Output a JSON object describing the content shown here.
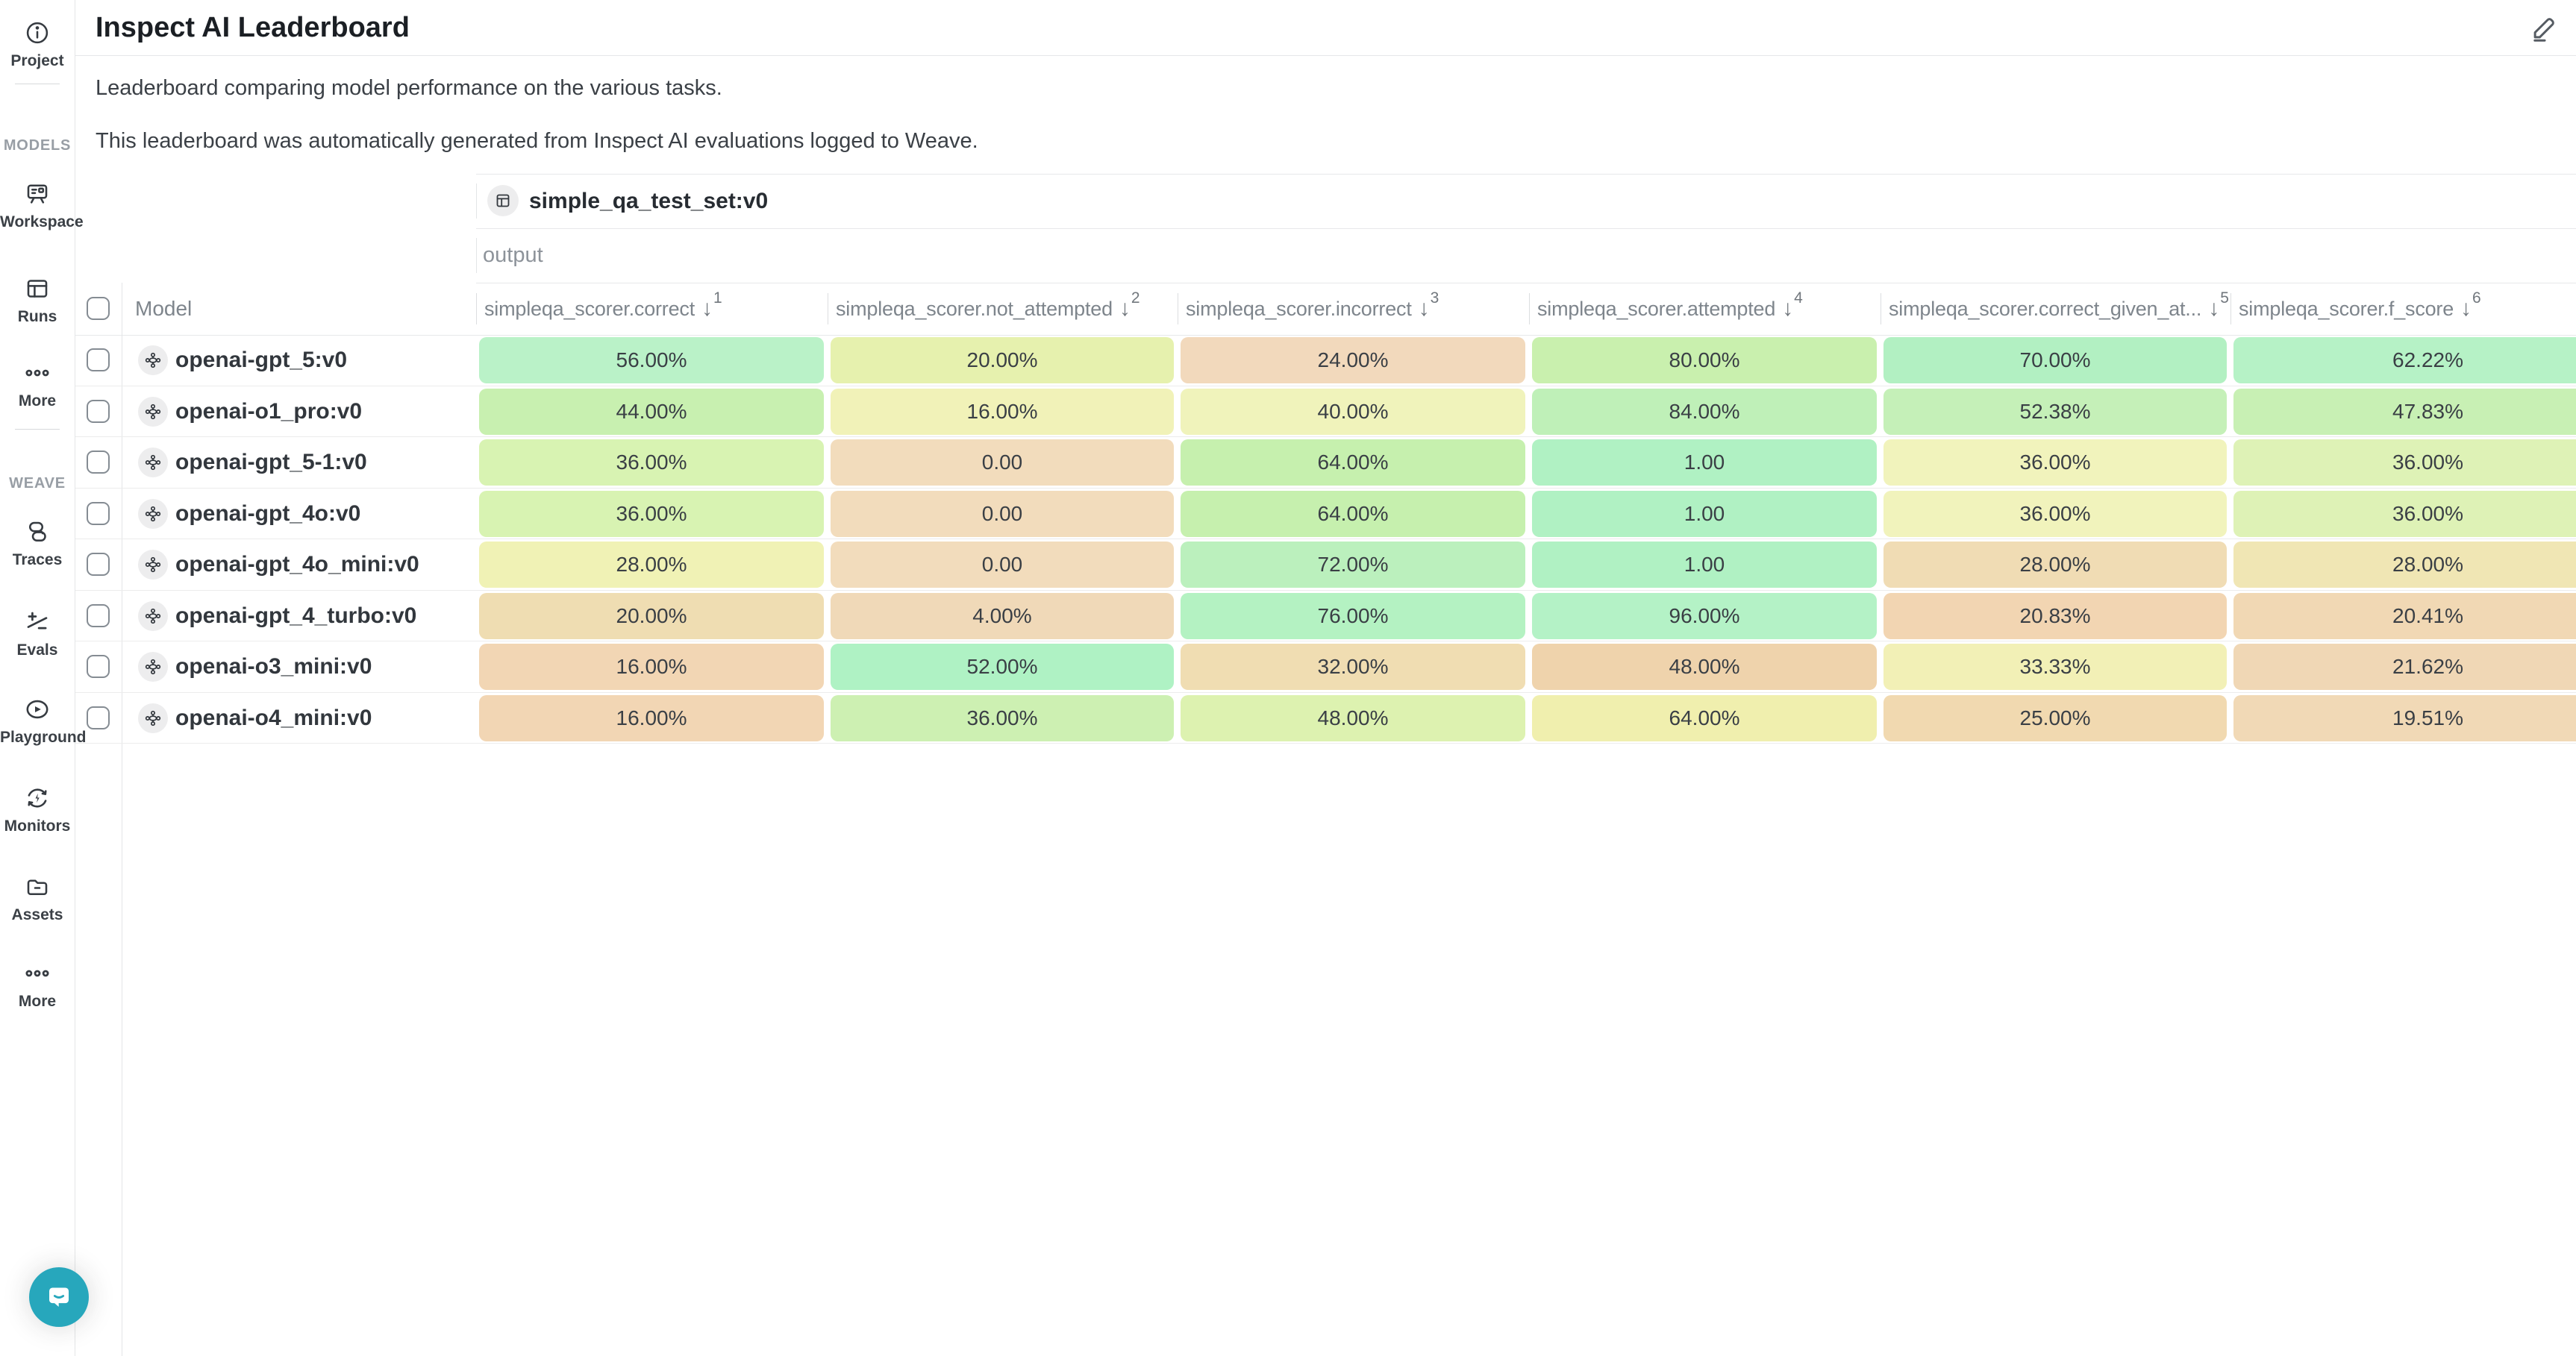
{
  "header": {
    "title": "Inspect AI Leaderboard"
  },
  "intro": {
    "line1": "Leaderboard comparing model performance on the various tasks.",
    "line2": "This leaderboard was automatically generated from Inspect AI evaluations logged to Weave."
  },
  "sidebar": {
    "sections": {
      "models": "MODELS",
      "weave": "WEAVE"
    },
    "items": [
      {
        "label": "Project"
      },
      {
        "label": "Workspace"
      },
      {
        "label": "Runs"
      },
      {
        "label": "More"
      },
      {
        "label": "Traces"
      },
      {
        "label": "Evals"
      },
      {
        "label": "Playground"
      },
      {
        "label": "Monitors"
      },
      {
        "label": "Assets"
      },
      {
        "label": "More"
      }
    ]
  },
  "table": {
    "dataset_header": {
      "label": "simple_qa_test_set:v0"
    },
    "group_row_label": "output",
    "model_column_label": "Model",
    "sort_arrow": "↓",
    "columns": [
      {
        "label": "simpleqa_scorer.correct",
        "sort_order": "1"
      },
      {
        "label": "simpleqa_scorer.not_attempted",
        "sort_order": "2"
      },
      {
        "label": "simpleqa_scorer.incorrect",
        "sort_order": "3"
      },
      {
        "label": "simpleqa_scorer.attempted",
        "sort_order": "4"
      },
      {
        "label": "simpleqa_scorer.correct_given_at...",
        "sort_order": "5"
      },
      {
        "label": "simpleqa_scorer.f_score",
        "sort_order": "6"
      }
    ],
    "rows": [
      {
        "model": "openai-gpt_5:v0",
        "cells": [
          {
            "text": "56.00%",
            "bg": "#baf2c8"
          },
          {
            "text": "20.00%",
            "bg": "#e6f1ae"
          },
          {
            "text": "24.00%",
            "bg": "#f2d9bc"
          },
          {
            "text": "80.00%",
            "bg": "#c9f0ae"
          },
          {
            "text": "70.00%",
            "bg": "#b2f0c2"
          },
          {
            "text": "62.22%",
            "bg": "#b6f2c6"
          }
        ]
      },
      {
        "model": "openai-o1_pro:v0",
        "cells": [
          {
            "text": "44.00%",
            "bg": "#c8f0b0"
          },
          {
            "text": "16.00%",
            "bg": "#f1f2b8"
          },
          {
            "text": "40.00%",
            "bg": "#f0f3bb"
          },
          {
            "text": "84.00%",
            "bg": "#bff0b8"
          },
          {
            "text": "52.38%",
            "bg": "#c5f0b8"
          },
          {
            "text": "47.83%",
            "bg": "#c8f0b4"
          }
        ]
      },
      {
        "model": "openai-gpt_5-1:v0",
        "cells": [
          {
            "text": "36.00%",
            "bg": "#d8f3b2"
          },
          {
            "text": "0.00",
            "bg": "#f2dcbc"
          },
          {
            "text": "64.00%",
            "bg": "#c6f0ae"
          },
          {
            "text": "1.00",
            "bg": "#b0f1c3"
          },
          {
            "text": "36.00%",
            "bg": "#f1f3bc"
          },
          {
            "text": "36.00%",
            "bg": "#def2b6"
          }
        ]
      },
      {
        "model": "openai-gpt_4o:v0",
        "cells": [
          {
            "text": "36.00%",
            "bg": "#d8f3b2"
          },
          {
            "text": "0.00",
            "bg": "#f2dcbc"
          },
          {
            "text": "64.00%",
            "bg": "#c6f0ae"
          },
          {
            "text": "1.00",
            "bg": "#b0f1c3"
          },
          {
            "text": "36.00%",
            "bg": "#f1f3bc"
          },
          {
            "text": "36.00%",
            "bg": "#def2b6"
          }
        ]
      },
      {
        "model": "openai-gpt_4o_mini:v0",
        "cells": [
          {
            "text": "28.00%",
            "bg": "#f0f2b5"
          },
          {
            "text": "0.00",
            "bg": "#f2dcbc"
          },
          {
            "text": "72.00%",
            "bg": "#bbf0bd"
          },
          {
            "text": "1.00",
            "bg": "#b0f1c3"
          },
          {
            "text": "28.00%",
            "bg": "#f0dcb4"
          },
          {
            "text": "28.00%",
            "bg": "#f0e6b4"
          }
        ]
      },
      {
        "model": "openai-gpt_4_turbo:v0",
        "cells": [
          {
            "text": "20.00%",
            "bg": "#efddb2"
          },
          {
            "text": "4.00%",
            "bg": "#f0d9b8"
          },
          {
            "text": "76.00%",
            "bg": "#b4f2c2"
          },
          {
            "text": "96.00%",
            "bg": "#b4f2c6"
          },
          {
            "text": "20.83%",
            "bg": "#f2d5b2"
          },
          {
            "text": "20.41%",
            "bg": "#f1d8b4"
          }
        ]
      },
      {
        "model": "openai-o3_mini:v0",
        "cells": [
          {
            "text": "16.00%",
            "bg": "#f2d6b4"
          },
          {
            "text": "52.00%",
            "bg": "#aff2c4"
          },
          {
            "text": "32.00%",
            "bg": "#f0ddb2"
          },
          {
            "text": "48.00%",
            "bg": "#efd3ac"
          },
          {
            "text": "33.33%",
            "bg": "#f2f0b6"
          },
          {
            "text": "21.62%",
            "bg": "#f0d7b5"
          }
        ]
      },
      {
        "model": "openai-o4_mini:v0",
        "cells": [
          {
            "text": "16.00%",
            "bg": "#f2d6b4"
          },
          {
            "text": "36.00%",
            "bg": "#cdf0b2"
          },
          {
            "text": "48.00%",
            "bg": "#ddf2b0"
          },
          {
            "text": "64.00%",
            "bg": "#f0efae"
          },
          {
            "text": "25.00%",
            "bg": "#f1d9b0"
          },
          {
            "text": "19.51%",
            "bg": "#f1d9b6"
          }
        ]
      }
    ]
  },
  "chat": {
    "color": "#27a7bc"
  }
}
